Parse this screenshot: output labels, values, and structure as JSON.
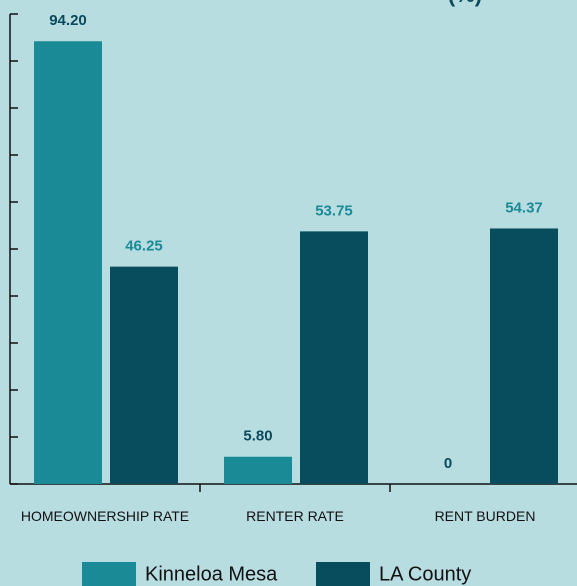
{
  "chart_data": {
    "type": "bar",
    "title": "(%)",
    "categories": [
      "HOMEOWNERSHIP RATE",
      "RENTER RATE",
      "RENT BURDEN"
    ],
    "series": [
      {
        "name": "Kinneloa Mesa",
        "color": "#1a8a96",
        "label_color": "#0b4a5c",
        "values": [
          94.2,
          5.8,
          0
        ],
        "value_labels": [
          "94.20",
          "5.80",
          "0"
        ]
      },
      {
        "name": "LA County",
        "color": "#074d5e",
        "label_color": "#1a8a96",
        "values": [
          46.25,
          53.75,
          54.37
        ],
        "value_labels": [
          "46.25",
          "53.75",
          "54.37"
        ]
      }
    ],
    "ylim": [
      0,
      100
    ],
    "yticks": [
      0,
      10,
      20,
      30,
      40,
      50,
      60,
      70,
      80,
      90,
      100
    ]
  }
}
